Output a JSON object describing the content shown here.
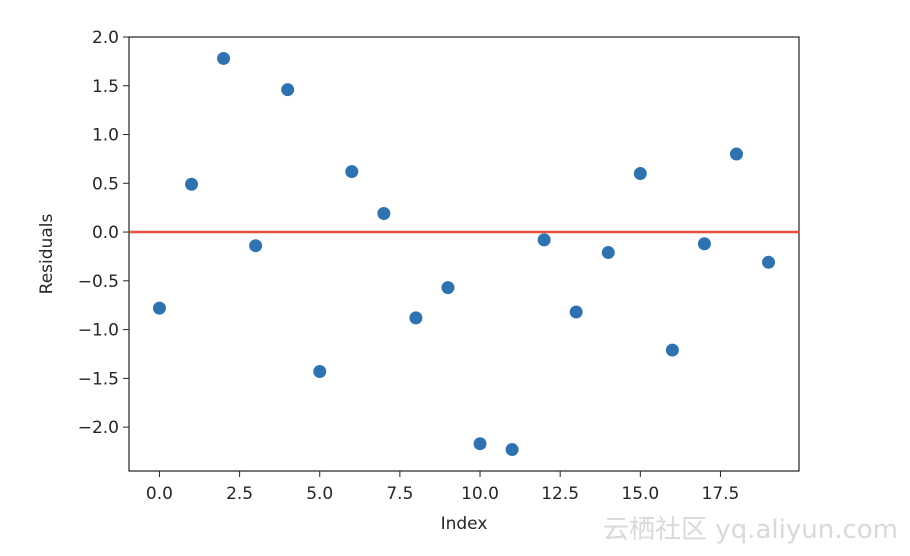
{
  "chart_data": {
    "type": "scatter",
    "title": "",
    "xlabel": "Index",
    "ylabel": "Residuals",
    "xlim": [
      -0.95,
      19.95
    ],
    "ylim": [
      -2.45,
      2.0
    ],
    "xticks": [
      0.0,
      2.5,
      5.0,
      7.5,
      10.0,
      12.5,
      15.0,
      17.5
    ],
    "xtick_labels": [
      "0.0",
      "2.5",
      "5.0",
      "7.5",
      "10.0",
      "12.5",
      "15.0",
      "17.5"
    ],
    "yticks": [
      2.0,
      1.5,
      1.0,
      0.5,
      0.0,
      -0.5,
      -1.0,
      -1.5,
      -2.0
    ],
    "ytick_labels": [
      "2.0",
      "1.5",
      "1.0",
      "0.5",
      "0.0",
      "−0.5",
      "−1.0",
      "−1.5",
      "−2.0"
    ],
    "grid": false,
    "series": [
      {
        "color": "#2f72b0",
        "x": [
          0,
          1,
          2,
          3,
          4,
          5,
          6,
          7,
          8,
          9,
          10,
          11,
          12,
          13,
          14,
          15,
          16,
          17,
          18,
          19
        ],
        "y": [
          -0.78,
          0.49,
          1.78,
          -0.14,
          1.46,
          -1.43,
          0.62,
          0.19,
          -0.88,
          -0.57,
          -2.17,
          -2.23,
          -0.08,
          -0.82,
          -0.21,
          0.6,
          -1.21,
          -0.12,
          0.8,
          -0.31
        ]
      }
    ],
    "reference_line": {
      "y": 0.0,
      "color": "#e8503e"
    }
  },
  "watermark": {
    "text": "云栖社区 yq.aliyun.com"
  }
}
